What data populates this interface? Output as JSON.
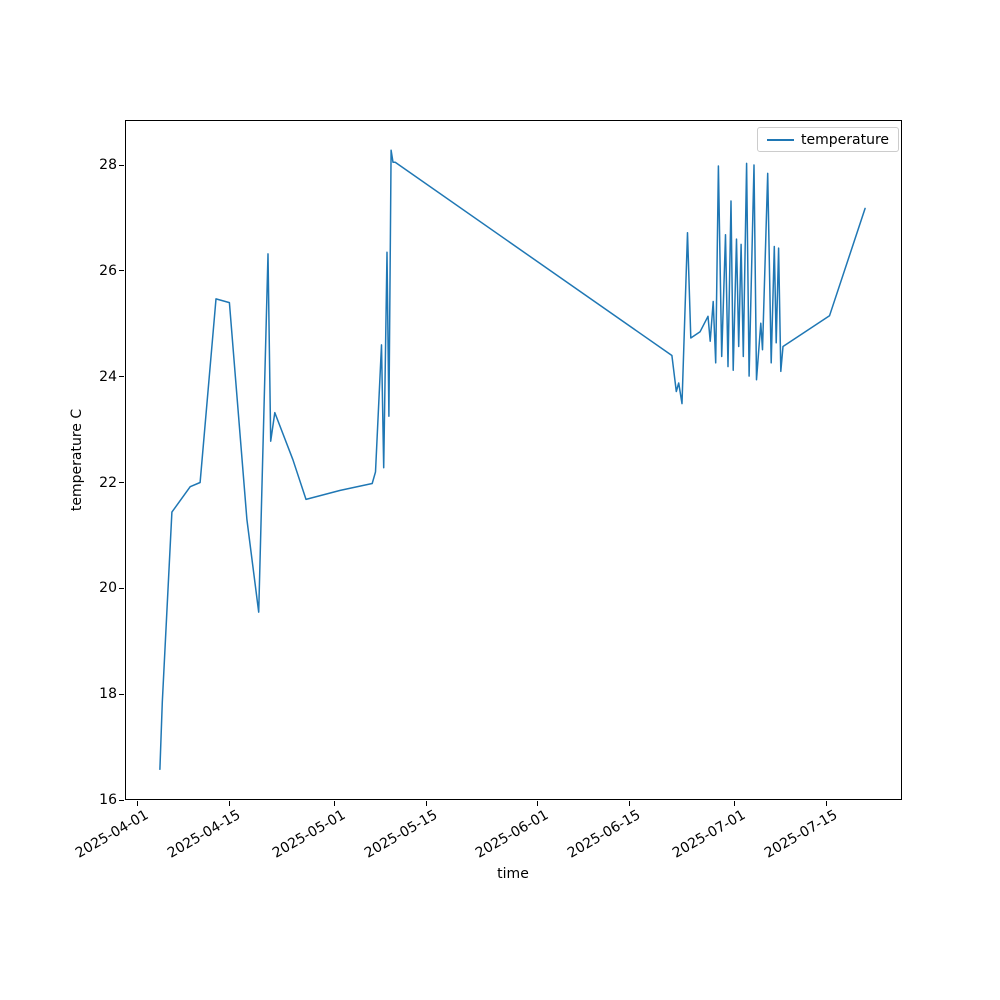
{
  "chart_data": {
    "type": "line",
    "title": "",
    "xlabel": "time",
    "ylabel": "temperature C",
    "grid": false,
    "line_color": "#1f77b4",
    "legend": {
      "position": "upper right",
      "entries": [
        "temperature"
      ]
    },
    "x_axis": {
      "epoch": "2025-04-01",
      "tick_labels": [
        "2025-04-01",
        "2025-04-15",
        "2025-05-01",
        "2025-05-15",
        "2025-06-01",
        "2025-06-15",
        "2025-07-01",
        "2025-07-15"
      ],
      "tick_day_offsets": [
        0,
        14,
        30,
        44,
        61,
        75,
        91,
        105
      ],
      "xlim_day_offsets": [
        -1.85,
        116.45
      ]
    },
    "y_axis": {
      "tick_labels": [
        "16",
        "18",
        "20",
        "22",
        "24",
        "26",
        "28"
      ],
      "tick_values": [
        16,
        18,
        20,
        22,
        24,
        26,
        28
      ],
      "ylim": [
        16.0,
        28.85
      ]
    },
    "series": [
      {
        "name": "temperature",
        "points": [
          [
            "2025-04-04 11:00",
            16.58
          ],
          [
            "2025-04-04 20:00",
            17.85
          ],
          [
            "2025-04-06 07:00",
            21.44
          ],
          [
            "2025-04-09 02:00",
            21.92
          ],
          [
            "2025-04-10 14:00",
            22.0
          ],
          [
            "2025-04-13 00:00",
            25.47
          ],
          [
            "2025-04-15 01:00",
            25.4
          ],
          [
            "2025-04-17 17:00",
            21.3
          ],
          [
            "2025-04-19 12:00",
            19.55
          ],
          [
            "2025-04-20 22:00",
            26.32
          ],
          [
            "2025-04-21 08:00",
            22.78
          ],
          [
            "2025-04-21 23:00",
            23.32
          ],
          [
            "2025-04-24 17:00",
            22.43
          ],
          [
            "2025-04-26 17:00",
            21.68
          ],
          [
            "2025-05-01 22:00",
            21.85
          ],
          [
            "2025-05-06 19:00",
            21.98
          ],
          [
            "2025-05-07 07:00",
            22.2
          ],
          [
            "2025-05-08 05:00",
            24.6
          ],
          [
            "2025-05-08 13:00",
            22.28
          ],
          [
            "2025-05-09 01:00",
            26.35
          ],
          [
            "2025-05-09 08:00",
            23.25
          ],
          [
            "2025-05-09 16:00",
            28.28
          ],
          [
            "2025-05-09 23:00",
            28.05
          ],
          [
            "2025-05-10 07:00",
            28.05
          ],
          [
            "2025-06-21 10:00",
            24.4
          ],
          [
            "2025-06-22 02:00",
            23.72
          ],
          [
            "2025-06-22 11:00",
            23.88
          ],
          [
            "2025-06-22 23:00",
            23.49
          ],
          [
            "2025-06-23 19:00",
            26.72
          ],
          [
            "2025-06-24 07:00",
            24.73
          ],
          [
            "2025-06-25 17:00",
            24.85
          ],
          [
            "2025-06-26 22:00",
            25.14
          ],
          [
            "2025-06-27 06:00",
            24.67
          ],
          [
            "2025-06-27 17:00",
            25.42
          ],
          [
            "2025-06-28 02:00",
            24.26
          ],
          [
            "2025-06-28 12:00",
            27.98
          ],
          [
            "2025-06-29 00:00",
            24.38
          ],
          [
            "2025-06-29 14:00",
            26.68
          ],
          [
            "2025-06-29 23:00",
            24.19
          ],
          [
            "2025-06-30 10:00",
            27.32
          ],
          [
            "2025-06-30 18:00",
            24.12
          ],
          [
            "2025-07-01 06:00",
            26.6
          ],
          [
            "2025-07-01 14:00",
            24.57
          ],
          [
            "2025-07-01 23:00",
            26.5
          ],
          [
            "2025-07-02 07:00",
            24.38
          ],
          [
            "2025-07-02 19:00",
            28.03
          ],
          [
            "2025-07-03 04:00",
            24.01
          ],
          [
            "2025-07-03 22:00",
            28.0
          ],
          [
            "2025-07-04 07:00",
            23.94
          ],
          [
            "2025-07-04 23:00",
            25.01
          ],
          [
            "2025-07-05 05:00",
            24.51
          ],
          [
            "2025-07-06 00:00",
            27.84
          ],
          [
            "2025-07-06 13:00",
            24.26
          ],
          [
            "2025-07-07 00:00",
            26.46
          ],
          [
            "2025-07-07 07:00",
            24.64
          ],
          [
            "2025-07-07 16:00",
            26.43
          ],
          [
            "2025-07-08 00:00",
            24.1
          ],
          [
            "2025-07-08 08:00",
            24.57
          ],
          [
            "2025-07-15 10:00",
            25.15
          ],
          [
            "2025-07-20 20:00",
            27.18
          ]
        ]
      }
    ]
  }
}
